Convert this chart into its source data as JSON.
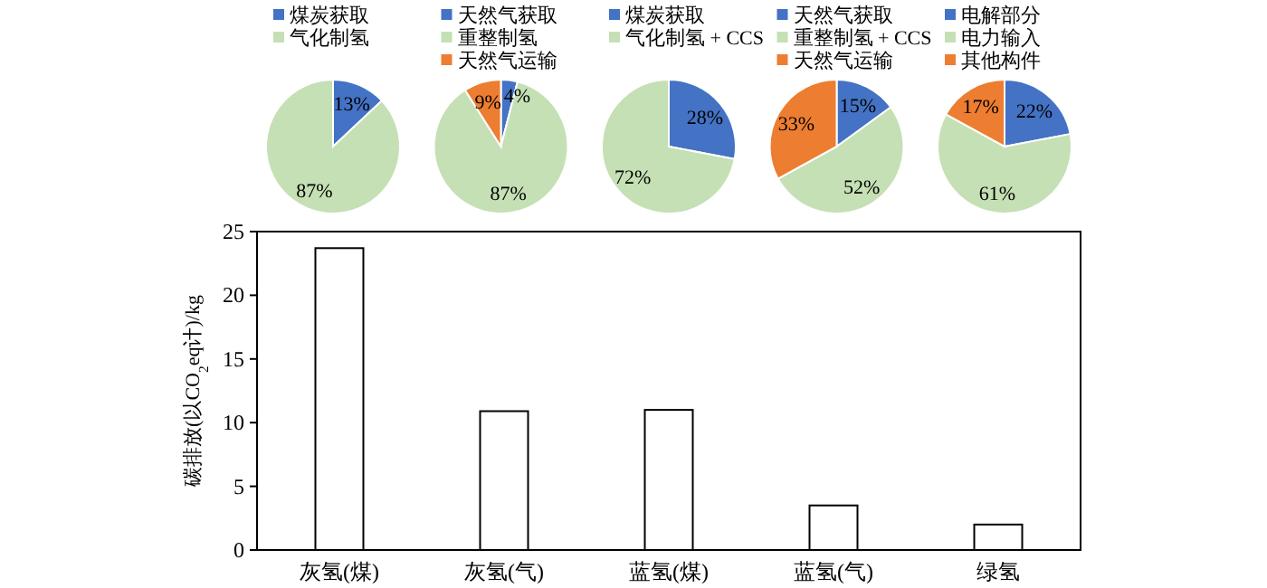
{
  "chart_data": [
    {
      "type": "pie",
      "legend": "top",
      "categories": [
        "煤炭获取",
        "气化制氢"
      ],
      "values": [
        13,
        87
      ],
      "value_labels": [
        "13%",
        "87%"
      ],
      "colors": [
        "#4472c4",
        "#c5e0b4"
      ]
    },
    {
      "type": "pie",
      "legend": "top",
      "categories": [
        "天然气获取",
        "重整制氢",
        "天然气运输"
      ],
      "values": [
        4,
        87,
        9
      ],
      "value_labels": [
        "4%",
        "87%",
        "9%"
      ],
      "colors": [
        "#4472c4",
        "#c5e0b4",
        "#ed7d31"
      ]
    },
    {
      "type": "pie",
      "legend": "top",
      "categories": [
        "煤炭获取",
        "气化制氢 + CCS"
      ],
      "values": [
        28,
        72
      ],
      "value_labels": [
        "28%",
        "72%"
      ],
      "colors": [
        "#4472c4",
        "#c5e0b4"
      ]
    },
    {
      "type": "pie",
      "legend": "top",
      "categories": [
        "天然气获取",
        "重整制氢 + CCS",
        "天然气运输"
      ],
      "values": [
        15,
        52,
        33
      ],
      "value_labels": [
        "15%",
        "52%",
        "33%"
      ],
      "colors": [
        "#4472c4",
        "#c5e0b4",
        "#ed7d31"
      ]
    },
    {
      "type": "pie",
      "legend": "top",
      "categories": [
        "电解部分",
        "电力输入",
        "其他构件"
      ],
      "values": [
        22,
        61,
        17
      ],
      "value_labels": [
        "22%",
        "61%",
        "17%"
      ],
      "colors": [
        "#4472c4",
        "#c5e0b4",
        "#ed7d31"
      ]
    },
    {
      "type": "bar",
      "ylabel": "碳排放(以CO$_{2}$eq计)/kg",
      "categories": [
        "灰氢(煤)",
        "灰氢(气)",
        "蓝氢(煤)",
        "蓝氢(气)",
        "绿氢"
      ],
      "values": [
        23.7,
        10.9,
        11.0,
        3.5,
        2.0
      ],
      "color": "#ffffff",
      "ylim": [
        0,
        25
      ],
      "yticks": [
        0,
        5,
        10,
        15,
        20,
        25
      ]
    }
  ]
}
